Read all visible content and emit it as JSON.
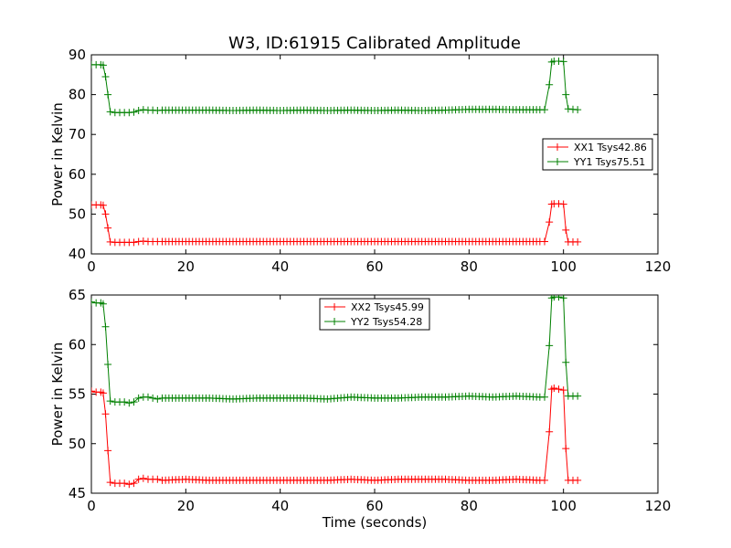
{
  "title": "W3, ID:61915 Calibrated Amplitude",
  "colors": {
    "xx": "#ff0000",
    "yy": "#008000",
    "axes": "#000000"
  },
  "chart_data": [
    {
      "type": "line",
      "name": "top-plot",
      "ylabel": "Power in Kelvin",
      "xlabel": "",
      "xlim": [
        0,
        120
      ],
      "ylim": [
        40,
        90
      ],
      "xticks": [
        0,
        20,
        40,
        60,
        80,
        100,
        120
      ],
      "yticks": [
        40,
        50,
        60,
        70,
        80,
        90
      ],
      "legend_position": "center-right",
      "series": [
        {
          "name": "XX1 Tsys42.86",
          "color": "#ff0000",
          "marker": "+",
          "points": [
            [
              0,
              52.3
            ],
            [
              1,
              52.3
            ],
            [
              2,
              52.3
            ],
            [
              2.5,
              52.2
            ],
            [
              3,
              50
            ],
            [
              3.5,
              46.5
            ],
            [
              4,
              43
            ],
            [
              5,
              42.9
            ],
            [
              6,
              42.9
            ],
            [
              7,
              42.9
            ],
            [
              8,
              42.9
            ],
            [
              9,
              42.9
            ],
            [
              10,
              43.1
            ],
            [
              11,
              43.2
            ],
            [
              12,
              43.1
            ],
            [
              13,
              43.1
            ],
            [
              14,
              43.1
            ],
            [
              15,
              43.1
            ],
            [
              20,
              43.1
            ],
            [
              25,
              43.1
            ],
            [
              30,
              43.1
            ],
            [
              35,
              43.1
            ],
            [
              40,
              43.1
            ],
            [
              45,
              43.1
            ],
            [
              50,
              43.1
            ],
            [
              55,
              43.1
            ],
            [
              60,
              43.1
            ],
            [
              65,
              43.1
            ],
            [
              70,
              43.1
            ],
            [
              75,
              43.1
            ],
            [
              80,
              43.1
            ],
            [
              85,
              43.1
            ],
            [
              90,
              43.1
            ],
            [
              95,
              43.1
            ],
            [
              96,
              43.1
            ],
            [
              97,
              48
            ],
            [
              97.5,
              52.5
            ],
            [
              98,
              52.6
            ],
            [
              99,
              52.6
            ],
            [
              100,
              52.5
            ],
            [
              100.5,
              46
            ],
            [
              101,
              43
            ],
            [
              102,
              43
            ],
            [
              103,
              43
            ]
          ]
        },
        {
          "name": "YY1 Tsys75.51",
          "color": "#008000",
          "marker": "+",
          "points": [
            [
              0,
              87.5
            ],
            [
              1,
              87.5
            ],
            [
              2,
              87.5
            ],
            [
              2.5,
              87.4
            ],
            [
              3,
              84.5
            ],
            [
              3.5,
              80
            ],
            [
              4,
              75.7
            ],
            [
              5,
              75.5
            ],
            [
              6,
              75.5
            ],
            [
              7,
              75.5
            ],
            [
              8,
              75.5
            ],
            [
              9,
              75.6
            ],
            [
              10,
              76
            ],
            [
              11,
              76.2
            ],
            [
              12,
              76.1
            ],
            [
              13,
              76.1
            ],
            [
              14,
              76
            ],
            [
              15,
              76.1
            ],
            [
              20,
              76.1
            ],
            [
              25,
              76.1
            ],
            [
              30,
              76
            ],
            [
              35,
              76.1
            ],
            [
              40,
              76
            ],
            [
              45,
              76.1
            ],
            [
              50,
              76
            ],
            [
              55,
              76.1
            ],
            [
              60,
              76
            ],
            [
              65,
              76.1
            ],
            [
              70,
              76
            ],
            [
              75,
              76.1
            ],
            [
              80,
              76.3
            ],
            [
              85,
              76.3
            ],
            [
              90,
              76.2
            ],
            [
              95,
              76.2
            ],
            [
              96,
              76.2
            ],
            [
              97,
              82.5
            ],
            [
              97.5,
              88.2
            ],
            [
              98,
              88.4
            ],
            [
              99,
              88.4
            ],
            [
              100,
              88.3
            ],
            [
              100.5,
              80
            ],
            [
              101,
              76.4
            ],
            [
              102,
              76.3
            ],
            [
              103,
              76.2
            ]
          ]
        }
      ]
    },
    {
      "type": "line",
      "name": "bottom-plot",
      "ylabel": "Power in Kelvin",
      "xlabel": "Time (seconds)",
      "xlim": [
        0,
        120
      ],
      "ylim": [
        45,
        65
      ],
      "xticks": [
        0,
        20,
        40,
        60,
        80,
        100,
        120
      ],
      "yticks": [
        45,
        50,
        55,
        60,
        65
      ],
      "legend_position": "top-center",
      "series": [
        {
          "name": "XX2 Tsys45.99",
          "color": "#ff0000",
          "marker": "+",
          "points": [
            [
              0,
              55.3
            ],
            [
              1,
              55.2
            ],
            [
              2,
              55.2
            ],
            [
              2.5,
              55.1
            ],
            [
              3,
              53
            ],
            [
              3.5,
              49.3
            ],
            [
              4,
              46.1
            ],
            [
              5,
              46
            ],
            [
              6,
              46
            ],
            [
              7,
              46
            ],
            [
              8,
              45.9
            ],
            [
              9,
              46
            ],
            [
              10,
              46.4
            ],
            [
              11,
              46.5
            ],
            [
              12,
              46.4
            ],
            [
              13,
              46.4
            ],
            [
              14,
              46.4
            ],
            [
              15,
              46.3
            ],
            [
              20,
              46.4
            ],
            [
              25,
              46.3
            ],
            [
              30,
              46.3
            ],
            [
              35,
              46.3
            ],
            [
              40,
              46.3
            ],
            [
              45,
              46.3
            ],
            [
              50,
              46.3
            ],
            [
              55,
              46.4
            ],
            [
              60,
              46.3
            ],
            [
              65,
              46.4
            ],
            [
              70,
              46.4
            ],
            [
              75,
              46.4
            ],
            [
              80,
              46.3
            ],
            [
              85,
              46.3
            ],
            [
              90,
              46.4
            ],
            [
              95,
              46.3
            ],
            [
              96,
              46.3
            ],
            [
              97,
              51.2
            ],
            [
              97.5,
              55.5
            ],
            [
              98,
              55.6
            ],
            [
              99,
              55.5
            ],
            [
              100,
              55.4
            ],
            [
              100.5,
              49.5
            ],
            [
              101,
              46.3
            ],
            [
              102,
              46.3
            ],
            [
              103,
              46.3
            ]
          ]
        },
        {
          "name": "YY2 Tsys54.28",
          "color": "#008000",
          "marker": "+",
          "points": [
            [
              0,
              64.3
            ],
            [
              1,
              64.2
            ],
            [
              2,
              64.2
            ],
            [
              2.5,
              64.1
            ],
            [
              3,
              61.8
            ],
            [
              3.5,
              58
            ],
            [
              4,
              54.3
            ],
            [
              5,
              54.2
            ],
            [
              6,
              54.2
            ],
            [
              7,
              54.2
            ],
            [
              8,
              54.1
            ],
            [
              9,
              54.2
            ],
            [
              10,
              54.6
            ],
            [
              11,
              54.7
            ],
            [
              12,
              54.7
            ],
            [
              13,
              54.6
            ],
            [
              14,
              54.5
            ],
            [
              15,
              54.6
            ],
            [
              20,
              54.6
            ],
            [
              25,
              54.6
            ],
            [
              30,
              54.5
            ],
            [
              35,
              54.6
            ],
            [
              40,
              54.6
            ],
            [
              45,
              54.6
            ],
            [
              50,
              54.5
            ],
            [
              55,
              54.7
            ],
            [
              60,
              54.6
            ],
            [
              65,
              54.6
            ],
            [
              70,
              54.7
            ],
            [
              75,
              54.7
            ],
            [
              80,
              54.8
            ],
            [
              85,
              54.7
            ],
            [
              90,
              54.8
            ],
            [
              95,
              54.7
            ],
            [
              96,
              54.7
            ],
            [
              97,
              59.9
            ],
            [
              97.5,
              64.7
            ],
            [
              98,
              64.8
            ],
            [
              99,
              64.8
            ],
            [
              100,
              64.7
            ],
            [
              100.5,
              58.2
            ],
            [
              101,
              54.8
            ],
            [
              102,
              54.8
            ],
            [
              103,
              54.8
            ]
          ]
        }
      ]
    }
  ]
}
